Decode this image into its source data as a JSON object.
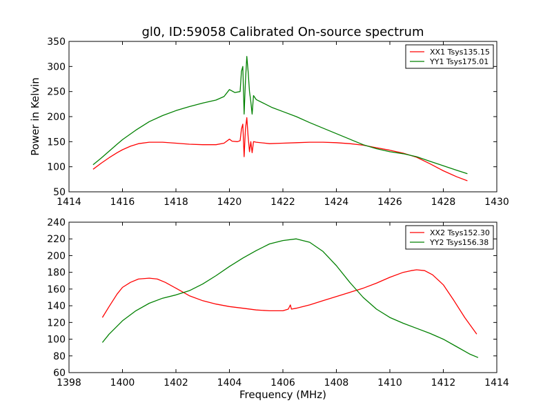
{
  "figure": {
    "title": "gl0, ID:59058 Calibrated On-source spectrum",
    "xlabel": "Frequency (MHz)",
    "ylabel": "Power in Kelvin"
  },
  "chart_data": [
    {
      "type": "line",
      "title": "gl0, ID:59058 Calibrated On-source spectrum",
      "xlabel": "",
      "ylabel": "Power in Kelvin",
      "xlim": [
        1414,
        1430
      ],
      "ylim": [
        50,
        350
      ],
      "xticks": [
        1414,
        1416,
        1418,
        1420,
        1422,
        1424,
        1426,
        1428,
        1430
      ],
      "yticks": [
        50,
        100,
        150,
        200,
        250,
        300,
        350
      ],
      "grid": false,
      "legend_position": "top-right",
      "series": [
        {
          "name": "XX1 Tsys135.15",
          "color": "#ff0000",
          "x": [
            1414.9,
            1415.2,
            1415.5,
            1415.8,
            1416.0,
            1416.3,
            1416.6,
            1417.0,
            1417.5,
            1418.0,
            1418.5,
            1419.0,
            1419.5,
            1419.8,
            1420.0,
            1420.1,
            1420.3,
            1420.4,
            1420.45,
            1420.5,
            1420.55,
            1420.6,
            1420.65,
            1420.7,
            1420.75,
            1420.8,
            1420.85,
            1420.9,
            1421.0,
            1421.5,
            1422.0,
            1422.5,
            1423.0,
            1423.5,
            1424.0,
            1424.5,
            1425.0,
            1425.5,
            1426.0,
            1426.5,
            1427.0,
            1427.5,
            1428.0,
            1428.5,
            1428.9
          ],
          "y": [
            95,
            107,
            118,
            128,
            134,
            141,
            146,
            149,
            149,
            147,
            145,
            144,
            144,
            147,
            155,
            151,
            150,
            152,
            175,
            185,
            120,
            175,
            198,
            160,
            130,
            150,
            128,
            150,
            149,
            146,
            147,
            148,
            149,
            149,
            148,
            146,
            143,
            138,
            133,
            127,
            119,
            106,
            92,
            80,
            72
          ]
        },
        {
          "name": "YY1 Tsys175.01",
          "color": "#008000",
          "x": [
            1414.9,
            1415.2,
            1415.5,
            1415.8,
            1416.0,
            1416.5,
            1417.0,
            1417.5,
            1418.0,
            1418.5,
            1419.0,
            1419.5,
            1419.8,
            1420.0,
            1420.2,
            1420.4,
            1420.45,
            1420.5,
            1420.55,
            1420.6,
            1420.65,
            1420.7,
            1420.75,
            1420.8,
            1420.85,
            1420.9,
            1421.0,
            1421.3,
            1421.6,
            1422.0,
            1422.5,
            1423.0,
            1423.5,
            1424.0,
            1424.5,
            1425.0,
            1425.5,
            1426.0,
            1426.5,
            1427.0,
            1427.5,
            1428.0,
            1428.5,
            1428.9
          ],
          "y": [
            104,
            117,
            131,
            145,
            154,
            173,
            190,
            202,
            212,
            220,
            227,
            233,
            240,
            254,
            248,
            250,
            290,
            300,
            205,
            270,
            320,
            290,
            250,
            230,
            205,
            242,
            234,
            226,
            218,
            210,
            200,
            188,
            177,
            166,
            155,
            144,
            136,
            130,
            126,
            120,
            111,
            102,
            93,
            86
          ]
        }
      ]
    },
    {
      "type": "line",
      "title": "",
      "xlabel": "Frequency (MHz)",
      "ylabel": "",
      "xlim": [
        1398,
        1414
      ],
      "ylim": [
        60,
        240
      ],
      "xticks": [
        1398,
        1400,
        1402,
        1404,
        1406,
        1408,
        1410,
        1412,
        1414
      ],
      "yticks": [
        60,
        80,
        100,
        120,
        140,
        160,
        180,
        200,
        220,
        240
      ],
      "grid": false,
      "legend_position": "top-right",
      "series": [
        {
          "name": "XX2 Tsys152.30",
          "color": "#ff0000",
          "x": [
            1399.25,
            1399.5,
            1399.8,
            1400.0,
            1400.3,
            1400.6,
            1401.0,
            1401.3,
            1401.6,
            1402.0,
            1402.5,
            1403.0,
            1403.5,
            1404.0,
            1404.5,
            1405.0,
            1405.5,
            1406.0,
            1406.2,
            1406.28,
            1406.32,
            1406.5,
            1407.0,
            1407.5,
            1408.0,
            1408.5,
            1409.0,
            1409.5,
            1410.0,
            1410.5,
            1410.8,
            1411.0,
            1411.3,
            1411.6,
            1412.0,
            1412.4,
            1412.8,
            1413.25
          ],
          "y": [
            126,
            139,
            154,
            162,
            168,
            172,
            173,
            172,
            168,
            161,
            152,
            146,
            142,
            139,
            137,
            135,
            134,
            134,
            136,
            141,
            136,
            137,
            141,
            146,
            151,
            156,
            161,
            167,
            174,
            180,
            182,
            183,
            182,
            177,
            165,
            146,
            126,
            106
          ]
        },
        {
          "name": "YY2 Tsys156.38",
          "color": "#008000",
          "x": [
            1399.25,
            1399.5,
            1400.0,
            1400.5,
            1401.0,
            1401.5,
            1402.0,
            1402.5,
            1403.0,
            1403.5,
            1404.0,
            1404.5,
            1405.0,
            1405.5,
            1406.0,
            1406.5,
            1407.0,
            1407.5,
            1408.0,
            1408.5,
            1409.0,
            1409.5,
            1410.0,
            1410.5,
            1411.0,
            1411.5,
            1412.0,
            1412.5,
            1413.0,
            1413.3
          ],
          "y": [
            96,
            106,
            122,
            134,
            143,
            149,
            153,
            158,
            166,
            176,
            187,
            197,
            206,
            214,
            218,
            220,
            216,
            205,
            188,
            168,
            150,
            136,
            126,
            119,
            113,
            107,
            100,
            91,
            82,
            78
          ]
        }
      ]
    }
  ]
}
